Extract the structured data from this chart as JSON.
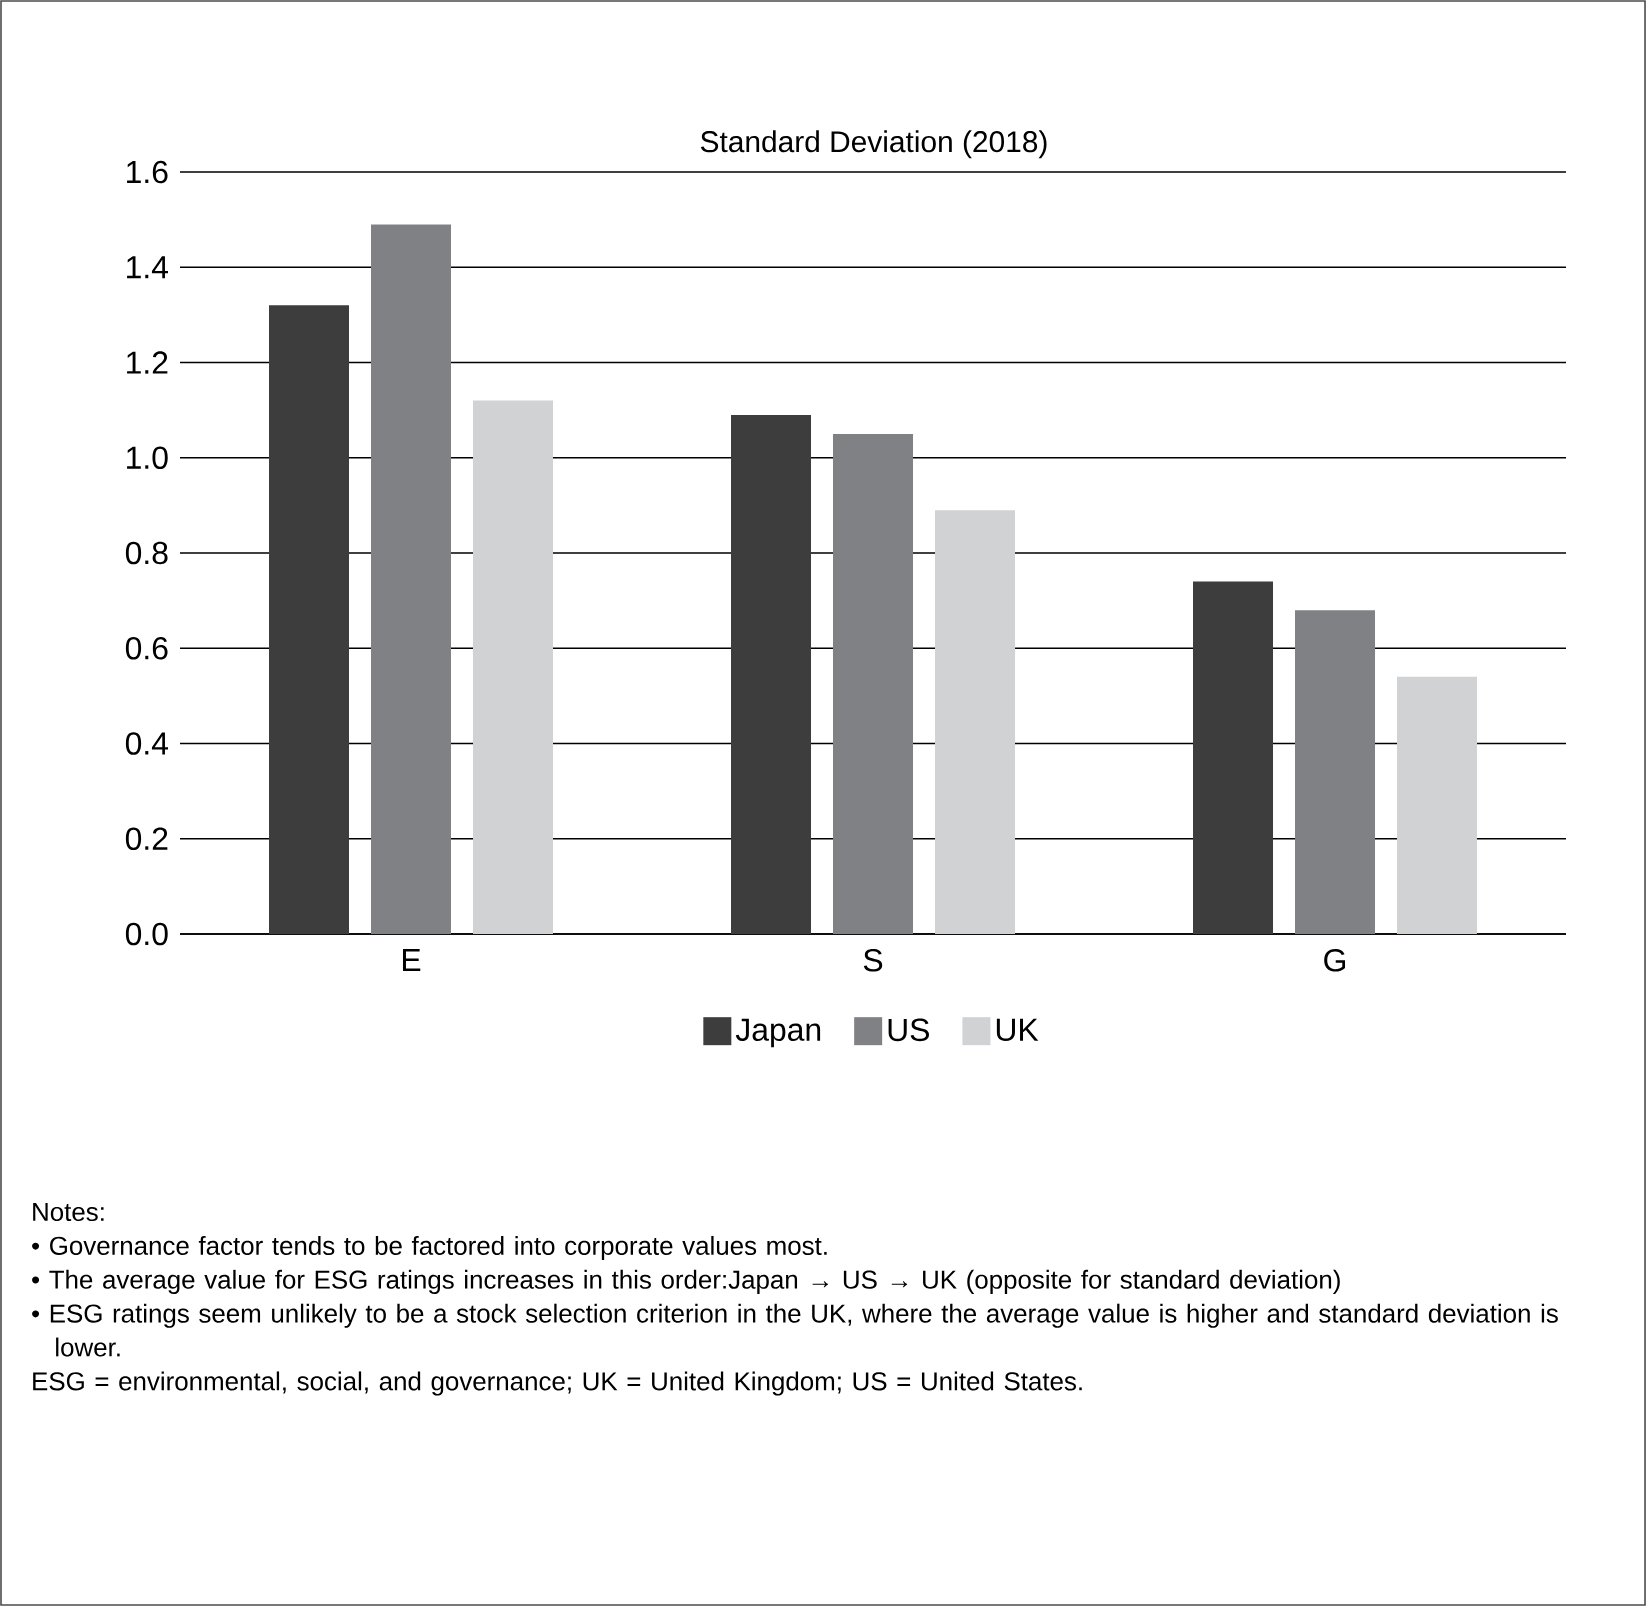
{
  "chart_data": {
    "type": "bar",
    "title": "Standard Deviation (2018)",
    "categories": [
      "E",
      "S",
      "G"
    ],
    "series": [
      {
        "name": "Japan",
        "color": "#3d3d3d",
        "values": [
          1.32,
          1.09,
          0.74
        ]
      },
      {
        "name": "US",
        "color": "#808184",
        "values": [
          1.49,
          1.05,
          0.68
        ]
      },
      {
        "name": "UK",
        "color": "#d1d2d4",
        "values": [
          1.12,
          0.89,
          0.54
        ]
      }
    ],
    "ylim": [
      0,
      1.6
    ],
    "yticks": [
      {
        "value": 0,
        "label": "0.0"
      },
      {
        "value": 0.2,
        "label": "0.2"
      },
      {
        "value": 0.4,
        "label": "0.4"
      },
      {
        "value": 0.6,
        "label": "0.6"
      },
      {
        "value": 0.8,
        "label": "0.8"
      },
      {
        "value": 1.0,
        "label": "1.0"
      },
      {
        "value": 1.2,
        "label": "1.2"
      },
      {
        "value": 1.4,
        "label": "1.4"
      },
      {
        "value": 1.6,
        "label": "1.6"
      }
    ],
    "grid": "y",
    "legend": "bottom",
    "annotations": [
      "Notes:",
      "• Governance factor tends to be factored into corporate values most.",
      "• The average value for ESG ratings increases in this order:Japan → US → UK (opposite for standard deviation)",
      "• ESG ratings seem unlikely to be a stock selection criterion in the UK, where the average value is higher and standard deviation is lower.",
      "ESG = environmental, social, and governance; UK = United Kingdom; US = United States."
    ]
  }
}
